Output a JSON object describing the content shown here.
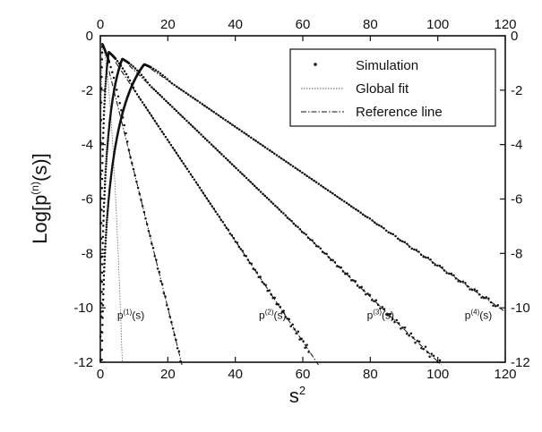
{
  "chart_data": {
    "type": "scatter",
    "title": "",
    "xlabel": "s",
    "xlabel_sup": "2",
    "ylabel": "Log[p",
    "ylabel_sup": "(n)",
    "ylabel_tail": "(s)]",
    "xlim": [
      0,
      120
    ],
    "ylim": [
      -12,
      0
    ],
    "x_ticks": [
      0,
      20,
      40,
      60,
      80,
      100,
      120
    ],
    "y_ticks": [
      0,
      -2,
      -4,
      -6,
      -8,
      -10,
      -12
    ],
    "x_ticks_top": [
      0,
      20,
      40,
      60,
      80,
      100,
      120
    ],
    "y_ticks_right": [
      0,
      -2,
      -4,
      -6,
      -8,
      -10,
      -12
    ],
    "grid": false,
    "legend": {
      "placement": "top-right",
      "entries": [
        {
          "label": "Simulation",
          "style": "dots"
        },
        {
          "label": "Global fit",
          "style": "dotted"
        },
        {
          "label": "Reference line",
          "style": "dashdot"
        }
      ]
    },
    "series": [
      {
        "label": "p(1)(s)",
        "label_base": "p",
        "label_sup": "(1)",
        "label_tail": "(s)",
        "label_at": [
          5,
          -10.4
        ],
        "x0": 0.6,
        "y0": -0.3,
        "slope_fit": -0.65,
        "curv_fit": -0.5,
        "slope_ref": -0.5,
        "x_sim_end": 26
      },
      {
        "label": "p(2)(s)",
        "label_base": "p",
        "label_sup": "(2)",
        "label_tail": "(s)",
        "label_at": [
          47,
          -10.4
        ],
        "x0": 2.5,
        "y0": -0.6,
        "slope_fit": -0.22,
        "curv_fit": -0.08,
        "slope_ref": -0.185,
        "x_sim_end": 62
      },
      {
        "label": "p(3)(s)",
        "label_base": "p",
        "label_sup": "(3)",
        "label_tail": "(s)",
        "label_at": [
          79,
          -10.4
        ],
        "x0": 6.5,
        "y0": -0.85,
        "slope_fit": -0.13,
        "curv_fit": -0.045,
        "slope_ref": -0.119,
        "x_sim_end": 101
      },
      {
        "label": "p(4)(s)",
        "label_base": "p",
        "label_sup": "(4)",
        "label_tail": "(s)",
        "label_at": [
          108,
          -10.4
        ],
        "x0": 13,
        "y0": -1.05,
        "slope_fit": -0.09,
        "curv_fit": -0.025,
        "slope_ref": -0.085,
        "x_sim_end": 118
      }
    ]
  }
}
